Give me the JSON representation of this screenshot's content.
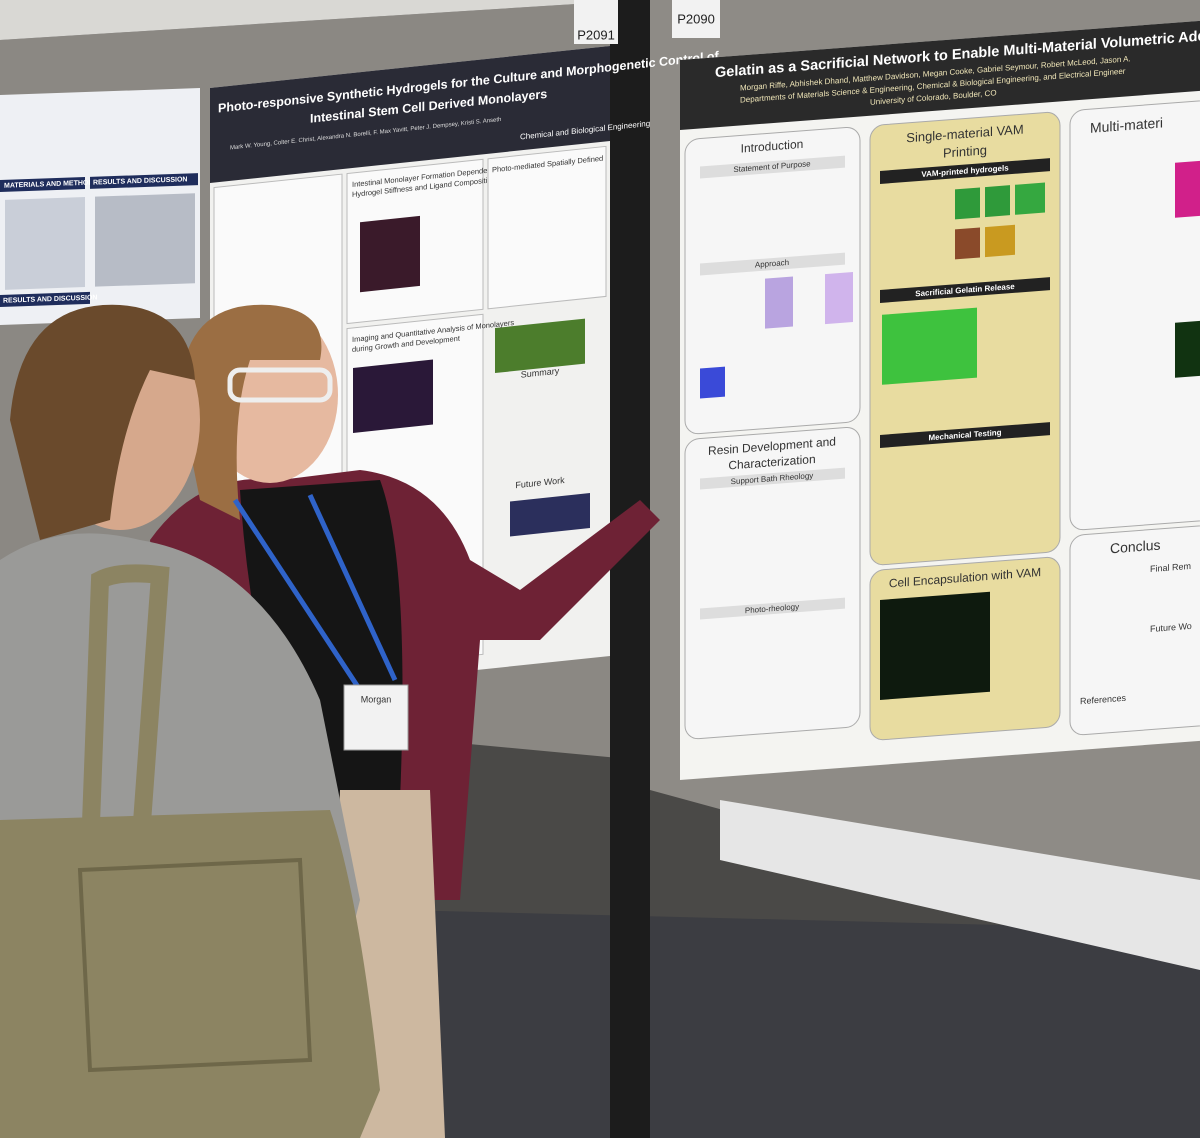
{
  "boards": {
    "left_number": "P2091",
    "right_number": "P2090"
  },
  "left_poster": {
    "sections": [
      "MATERIALS AND METHODS",
      "RESULTS AND DISCUSSION",
      "RESULTS AND DISCUSSION"
    ]
  },
  "middle_poster": {
    "title": "Photo-responsive Synthetic Hydrogels for the Culture and Morphogenetic Control of",
    "title_line2": "Intestinal Stem Cell Derived Monolayers",
    "authors": "Mark W. Young, Colter E. Christ, Alexandra N. Borelli, F. Max Yavitt, Peter J. Dempsey, Kristi S. Anseth",
    "department": "Chemical and Biological Engineering",
    "sections": [
      "Intestinal Monolayer Formation Dependence on",
      "Hydrogel Stiffness and Ligand Composition",
      "Photo-mediated Spatially Defined",
      "Imaging and Quantitative Analysis of Monolayers",
      "during Growth and Development",
      "Summary",
      "Future Work"
    ]
  },
  "right_poster": {
    "title": "Gelatin as a Sacrificial Network to Enable Multi-Material Volumetric Additive M",
    "authors": "Morgan Riffe, Abhishek Dhand, Matthew Davidson, Megan Cooke, Gabriel Seymour, Robert McLeod, Jason A.",
    "departments": "Departments of Materials Science & Engineering, Chemical & Biological Engineering, and Electrical Engineer",
    "university": "University of Colorado, Boulder, CO",
    "sections": {
      "introduction": "Introduction",
      "purpose": "Statement of Purpose",
      "approach": "Approach",
      "single": "Single-material VAM",
      "single2": "Printing",
      "vam_hydrogels": "VAM-printed hydrogels",
      "gelatin_release": "Sacrificial Gelatin Release",
      "mechanical": "Mechanical Testing",
      "encapsulation": "Cell Encapsulation with VAM",
      "resin": "Resin Development and",
      "resin2": "Characterization",
      "support": "Support Bath Rheology",
      "photo": "Photo-rheology",
      "multi": "Multi-materi",
      "conclusion": "Conclus",
      "final": "Final Rem",
      "future": "Future Wo",
      "references": "References"
    }
  },
  "badge": {
    "name": "Morgan"
  }
}
